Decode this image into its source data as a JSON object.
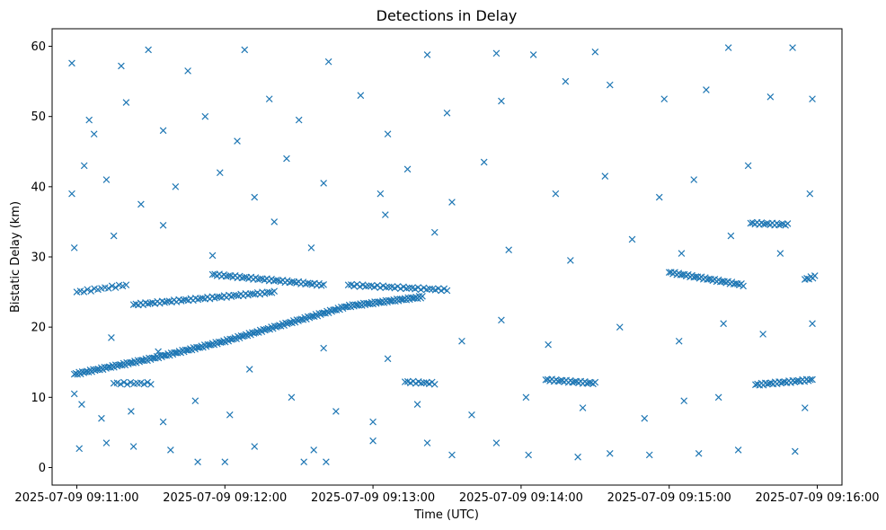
{
  "chart_data": {
    "type": "scatter",
    "title": "Detections in Delay",
    "xlabel": "Time (UTC)",
    "ylabel": "Bistatic Delay (km)",
    "x_axis": {
      "type": "time",
      "range": [
        "2025-07-09 09:10:50",
        "2025-07-09 09:16:10"
      ],
      "ticks": [
        "2025-07-09 09:11:00",
        "2025-07-09 09:12:00",
        "2025-07-09 09:13:00",
        "2025-07-09 09:14:00",
        "2025-07-09 09:15:00",
        "2025-07-09 09:16:00"
      ]
    },
    "y_axis": {
      "range": [
        -2.5,
        62.5
      ],
      "ticks": [
        0,
        10,
        20,
        30,
        40,
        50,
        60
      ]
    },
    "grid": false,
    "legend": "none",
    "marker": "x",
    "color": "#1f77b4",
    "tracks": [
      {
        "x": [
          "2025-07-09 09:10:59",
          "2025-07-09 09:11:30",
          "2025-07-09 09:12:00",
          "2025-07-09 09:12:30",
          "2025-07-09 09:12:50",
          "2025-07-09 09:13:20"
        ],
        "y": [
          13.3,
          15.5,
          18.0,
          21.0,
          23.0,
          24.3
        ],
        "count": 220
      },
      {
        "x": [
          "2025-07-09 09:11:23",
          "2025-07-09 09:12:20"
        ],
        "y": [
          23.2,
          25.0
        ],
        "count": 60
      },
      {
        "x": [
          "2025-07-09 09:11:55",
          "2025-07-09 09:12:40"
        ],
        "y": [
          27.5,
          26.0
        ],
        "count": 50
      },
      {
        "x": [
          "2025-07-09 09:12:50",
          "2025-07-09 09:13:30"
        ],
        "y": [
          26.0,
          25.3
        ],
        "count": 35
      },
      {
        "x": [
          "2025-07-09 09:15:00",
          "2025-07-09 09:15:30"
        ],
        "y": [
          27.8,
          26.0
        ],
        "count": 40
      },
      {
        "x": [
          "2025-07-09 09:14:10",
          "2025-07-09 09:14:30"
        ],
        "y": [
          12.5,
          12.0
        ],
        "count": 25
      },
      {
        "x": [
          "2025-07-09 09:15:35",
          "2025-07-09 09:15:58"
        ],
        "y": [
          11.8,
          12.5
        ],
        "count": 30
      },
      {
        "x": [
          "2025-07-09 09:15:33",
          "2025-07-09 09:15:48"
        ],
        "y": [
          34.8,
          34.6
        ],
        "count": 18
      },
      {
        "x": [
          "2025-07-09 09:13:13",
          "2025-07-09 09:13:25"
        ],
        "y": [
          12.2,
          12.0
        ],
        "count": 12
      },
      {
        "x": [
          "2025-07-09 09:11:15",
          "2025-07-09 09:11:30"
        ],
        "y": [
          12.0,
          12.0
        ],
        "count": 12
      },
      {
        "x": [
          "2025-07-09 09:11:00",
          "2025-07-09 09:11:20"
        ],
        "y": [
          25.0,
          26.0
        ],
        "count": 15
      },
      {
        "x": [
          "2025-07-09 09:15:55",
          "2025-07-09 09:15:59"
        ],
        "y": [
          26.8,
          27.2
        ],
        "count": 6
      }
    ],
    "scatter_points": [
      [
        "2025-07-09 09:10:58",
        57.6
      ],
      [
        "2025-07-09 09:11:05",
        49.5
      ],
      [
        "2025-07-09 09:11:18",
        57.2
      ],
      [
        "2025-07-09 09:11:29",
        59.5
      ],
      [
        "2025-07-09 09:11:45",
        56.5
      ],
      [
        "2025-07-09 09:12:08",
        59.5
      ],
      [
        "2025-07-09 09:12:42",
        57.8
      ],
      [
        "2025-07-09 09:13:22",
        58.8
      ],
      [
        "2025-07-09 09:13:50",
        59.0
      ],
      [
        "2025-07-09 09:14:05",
        58.8
      ],
      [
        "2025-07-09 09:14:30",
        59.2
      ],
      [
        "2025-07-09 09:15:24",
        59.8
      ],
      [
        "2025-07-09 09:15:50",
        59.8
      ],
      [
        "2025-07-09 09:11:07",
        47.5
      ],
      [
        "2025-07-09 09:11:20",
        52.0
      ],
      [
        "2025-07-09 09:11:35",
        48.0
      ],
      [
        "2025-07-09 09:11:52",
        50.0
      ],
      [
        "2025-07-09 09:12:05",
        46.5
      ],
      [
        "2025-07-09 09:12:18",
        52.5
      ],
      [
        "2025-07-09 09:12:30",
        49.5
      ],
      [
        "2025-07-09 09:12:55",
        53.0
      ],
      [
        "2025-07-09 09:13:06",
        47.5
      ],
      [
        "2025-07-09 09:13:30",
        50.5
      ],
      [
        "2025-07-09 09:13:52",
        52.2
      ],
      [
        "2025-07-09 09:14:18",
        55.0
      ],
      [
        "2025-07-09 09:14:36",
        54.5
      ],
      [
        "2025-07-09 09:14:58",
        52.5
      ],
      [
        "2025-07-09 09:15:15",
        53.8
      ],
      [
        "2025-07-09 09:15:41",
        52.8
      ],
      [
        "2025-07-09 09:15:58",
        52.5
      ],
      [
        "2025-07-09 09:10:58",
        39.0
      ],
      [
        "2025-07-09 09:11:03",
        43.0
      ],
      [
        "2025-07-09 09:11:12",
        41.0
      ],
      [
        "2025-07-09 09:11:26",
        37.5
      ],
      [
        "2025-07-09 09:11:40",
        40.0
      ],
      [
        "2025-07-09 09:11:58",
        42.0
      ],
      [
        "2025-07-09 09:12:12",
        38.5
      ],
      [
        "2025-07-09 09:12:25",
        44.0
      ],
      [
        "2025-07-09 09:12:40",
        40.5
      ],
      [
        "2025-07-09 09:13:03",
        39.0
      ],
      [
        "2025-07-09 09:13:14",
        42.5
      ],
      [
        "2025-07-09 09:13:32",
        37.8
      ],
      [
        "2025-07-09 09:13:45",
        43.5
      ],
      [
        "2025-07-09 09:14:14",
        39.0
      ],
      [
        "2025-07-09 09:14:34",
        41.5
      ],
      [
        "2025-07-09 09:14:56",
        38.5
      ],
      [
        "2025-07-09 09:15:10",
        41.0
      ],
      [
        "2025-07-09 09:15:32",
        43.0
      ],
      [
        "2025-07-09 09:15:57",
        39.0
      ],
      [
        "2025-07-09 09:10:59",
        31.3
      ],
      [
        "2025-07-09 09:11:15",
        33.0
      ],
      [
        "2025-07-09 09:11:35",
        34.5
      ],
      [
        "2025-07-09 09:11:55",
        30.2
      ],
      [
        "2025-07-09 09:12:20",
        35.0
      ],
      [
        "2025-07-09 09:12:35",
        31.3
      ],
      [
        "2025-07-09 09:13:05",
        36.0
      ],
      [
        "2025-07-09 09:13:25",
        33.5
      ],
      [
        "2025-07-09 09:13:55",
        31.0
      ],
      [
        "2025-07-09 09:14:20",
        29.5
      ],
      [
        "2025-07-09 09:14:45",
        32.5
      ],
      [
        "2025-07-09 09:15:05",
        30.5
      ],
      [
        "2025-07-09 09:15:25",
        33.0
      ],
      [
        "2025-07-09 09:15:45",
        30.5
      ],
      [
        "2025-07-09 09:10:59",
        10.5
      ],
      [
        "2025-07-09 09:11:02",
        9.0
      ],
      [
        "2025-07-09 09:11:10",
        7.0
      ],
      [
        "2025-07-09 09:11:22",
        8.0
      ],
      [
        "2025-07-09 09:11:35",
        6.5
      ],
      [
        "2025-07-09 09:11:48",
        9.5
      ],
      [
        "2025-07-09 09:12:02",
        7.5
      ],
      [
        "2025-07-09 09:12:27",
        10.0
      ],
      [
        "2025-07-09 09:12:45",
        8.0
      ],
      [
        "2025-07-09 09:13:00",
        6.5
      ],
      [
        "2025-07-09 09:13:18",
        9.0
      ],
      [
        "2025-07-09 09:13:40",
        7.5
      ],
      [
        "2025-07-09 09:14:02",
        10.0
      ],
      [
        "2025-07-09 09:14:25",
        8.5
      ],
      [
        "2025-07-09 09:14:50",
        7.0
      ],
      [
        "2025-07-09 09:15:06",
        9.5
      ],
      [
        "2025-07-09 09:15:20",
        10.0
      ],
      [
        "2025-07-09 09:15:55",
        8.5
      ],
      [
        "2025-07-09 09:11:01",
        2.7
      ],
      [
        "2025-07-09 09:11:12",
        3.5
      ],
      [
        "2025-07-09 09:11:23",
        3.0
      ],
      [
        "2025-07-09 09:11:38",
        2.5
      ],
      [
        "2025-07-09 09:11:49",
        0.8
      ],
      [
        "2025-07-09 09:12:00",
        0.8
      ],
      [
        "2025-07-09 09:12:12",
        3.0
      ],
      [
        "2025-07-09 09:12:32",
        0.8
      ],
      [
        "2025-07-09 09:12:36",
        2.5
      ],
      [
        "2025-07-09 09:12:41",
        0.8
      ],
      [
        "2025-07-09 09:13:00",
        3.8
      ],
      [
        "2025-07-09 09:13:22",
        3.5
      ],
      [
        "2025-07-09 09:13:32",
        1.8
      ],
      [
        "2025-07-09 09:13:50",
        3.5
      ],
      [
        "2025-07-09 09:14:03",
        1.8
      ],
      [
        "2025-07-09 09:14:23",
        1.5
      ],
      [
        "2025-07-09 09:14:36",
        2.0
      ],
      [
        "2025-07-09 09:14:52",
        1.8
      ],
      [
        "2025-07-09 09:15:12",
        2.0
      ],
      [
        "2025-07-09 09:15:28",
        2.5
      ],
      [
        "2025-07-09 09:15:51",
        2.3
      ],
      [
        "2025-07-09 09:11:14",
        18.5
      ],
      [
        "2025-07-09 09:11:33",
        16.5
      ],
      [
        "2025-07-09 09:12:10",
        14.0
      ],
      [
        "2025-07-09 09:12:40",
        17.0
      ],
      [
        "2025-07-09 09:13:06",
        15.5
      ],
      [
        "2025-07-09 09:13:36",
        18.0
      ],
      [
        "2025-07-09 09:13:52",
        21.0
      ],
      [
        "2025-07-09 09:14:11",
        17.5
      ],
      [
        "2025-07-09 09:14:40",
        20.0
      ],
      [
        "2025-07-09 09:15:04",
        18.0
      ],
      [
        "2025-07-09 09:15:22",
        20.5
      ],
      [
        "2025-07-09 09:15:38",
        19.0
      ],
      [
        "2025-07-09 09:15:58",
        20.5
      ]
    ]
  }
}
